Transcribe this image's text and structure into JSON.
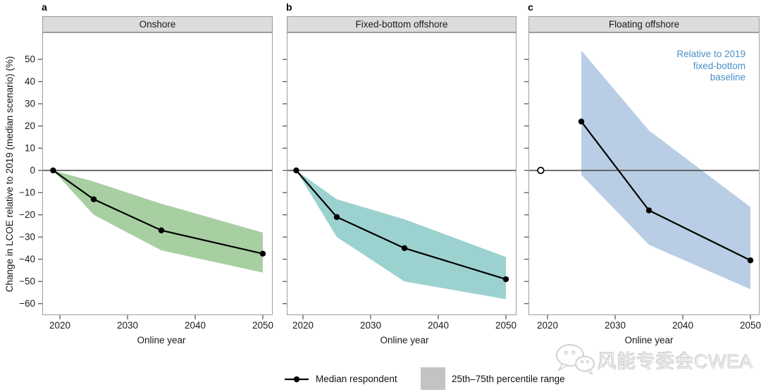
{
  "chart_data": {
    "type": "line",
    "xlabel": "Online year",
    "ylabel": "Change in LCOE relative to 2019 (median scenario) (%)",
    "xticks": [
      2020,
      2030,
      2040,
      2050
    ],
    "yticks": [
      50,
      40,
      30,
      20,
      10,
      0,
      -10,
      -20,
      -30,
      -40,
      -50,
      -60
    ],
    "ylim": [
      -65,
      58
    ],
    "xlim": [
      2017.5,
      2051.5
    ],
    "grid": false,
    "band_meaning": "25th-75th percentile range",
    "panels": [
      {
        "letter": "a",
        "title": "Onshore",
        "band_color": "#a8cfa2",
        "median": {
          "x": [
            2019,
            2025,
            2035,
            2050
          ],
          "y": [
            0,
            -13,
            -27,
            -37.5
          ]
        },
        "band": {
          "x": [
            2019,
            2025,
            2035,
            2050
          ],
          "hi": [
            0,
            -5,
            -15,
            -28
          ],
          "lo": [
            0,
            -20,
            -36,
            -46
          ]
        },
        "open_point": null
      },
      {
        "letter": "b",
        "title": "Fixed-bottom offshore",
        "band_color": "#9bd2d0",
        "median": {
          "x": [
            2019,
            2025,
            2035,
            2050
          ],
          "y": [
            0,
            -21,
            -35,
            -49
          ]
        },
        "band": {
          "x": [
            2019,
            2025,
            2035,
            2050
          ],
          "hi": [
            0,
            -13,
            -22,
            -39
          ],
          "lo": [
            0,
            -30,
            -50,
            -58
          ]
        },
        "open_point": null
      },
      {
        "letter": "c",
        "title": "Floating offshore",
        "band_color": "#b9cee4",
        "median": {
          "x": [
            2025,
            2035,
            2050
          ],
          "y": [
            22,
            -18,
            -40.5
          ]
        },
        "band": {
          "x": [
            2025,
            2035,
            2050
          ],
          "hi": [
            54,
            18,
            -16.5
          ],
          "lo": [
            -2,
            -33.5,
            -53.5
          ]
        },
        "open_point": {
          "x": 2019,
          "y": 0
        },
        "annotation_lines": [
          "Relative to 2019",
          "fixed-bottom",
          "baseline"
        ],
        "annotation_color": "#4a8fc7"
      }
    ]
  },
  "legend": {
    "median_label": "Median respondent",
    "range_label": "25th–75th percentile range",
    "swatch_color": "#c3c3c3"
  },
  "watermark": {
    "text": "风能专委会CWEA",
    "icon": "wechat-chat-bubbles"
  }
}
